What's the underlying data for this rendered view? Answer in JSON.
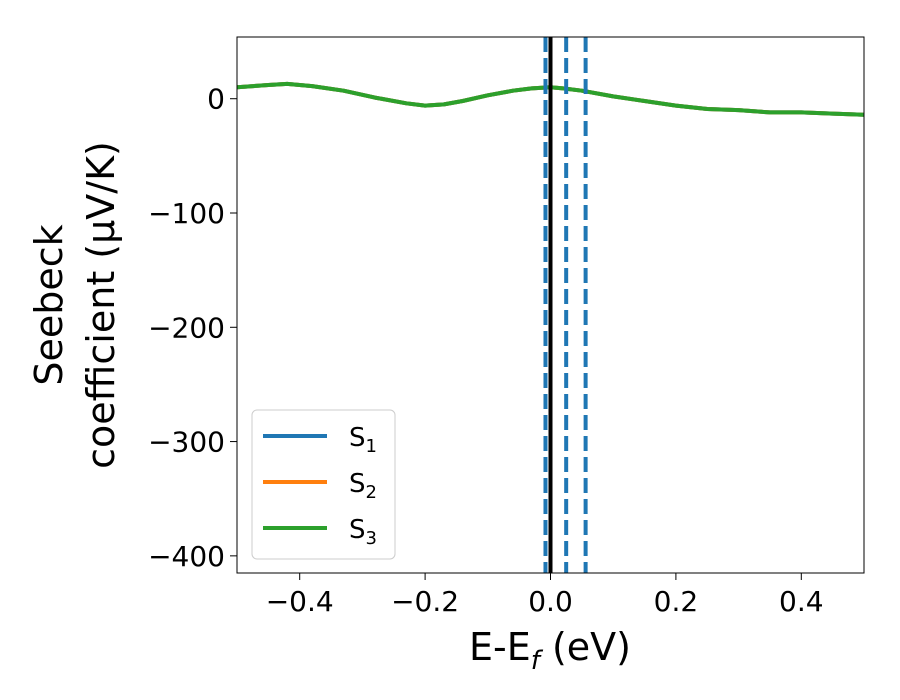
{
  "chart_data": {
    "type": "line",
    "xlabel": {
      "main": "E-E",
      "sub": "f",
      "tail": " (eV)"
    },
    "ylabel": {
      "line1": "Seebeck",
      "line2": "coefficient  (μV/K)"
    },
    "xlim": [
      -0.5,
      0.5
    ],
    "ylim": [
      -415,
      54
    ],
    "xticks": [
      -0.4,
      -0.2,
      0.0,
      0.2,
      0.4
    ],
    "xtick_labels": [
      "−0.4",
      "−0.2",
      "0.0",
      "0.2",
      "0.4"
    ],
    "yticks": [
      0,
      -100,
      -200,
      -300,
      -400
    ],
    "ytick_labels": [
      "0",
      "−100",
      "−200",
      "−300",
      "−400"
    ],
    "grid": false,
    "legend_position": "lower-left",
    "series": [
      {
        "name": {
          "main": "S",
          "sub": "1"
        },
        "color": "#1f77b4",
        "x": [
          -0.5,
          -0.45,
          -0.42,
          -0.38,
          -0.33,
          -0.28,
          -0.23,
          -0.2,
          -0.17,
          -0.14,
          -0.1,
          -0.06,
          -0.03,
          0.0,
          0.02,
          0.05,
          0.1,
          0.15,
          0.2,
          0.25,
          0.3,
          0.35,
          0.4,
          0.45,
          0.5
        ],
        "y": [
          10,
          12,
          13,
          11,
          7,
          1,
          -4,
          -6,
          -5,
          -2,
          3,
          7,
          9,
          10,
          9,
          7,
          2,
          -2,
          -6,
          -9,
          -10,
          -12,
          -12,
          -13,
          -14
        ]
      },
      {
        "name": {
          "main": "S",
          "sub": "2"
        },
        "color": "#ff7f0e",
        "x": [
          -0.5,
          -0.45,
          -0.42,
          -0.38,
          -0.33,
          -0.28,
          -0.23,
          -0.2,
          -0.17,
          -0.14,
          -0.1,
          -0.06,
          -0.03,
          0.0,
          0.02,
          0.05,
          0.1,
          0.15,
          0.2,
          0.25,
          0.3,
          0.35,
          0.4,
          0.45,
          0.5
        ],
        "y": [
          10,
          12,
          13,
          11,
          7,
          1,
          -4,
          -6,
          -5,
          -2,
          3,
          7,
          9,
          10,
          9,
          7,
          2,
          -2,
          -6,
          -9,
          -10,
          -12,
          -12,
          -13,
          -14
        ]
      },
      {
        "name": {
          "main": "S",
          "sub": "3"
        },
        "color": "#2ca02c",
        "x": [
          -0.5,
          -0.45,
          -0.42,
          -0.38,
          -0.33,
          -0.28,
          -0.23,
          -0.2,
          -0.17,
          -0.14,
          -0.1,
          -0.06,
          -0.03,
          0.0,
          0.02,
          0.05,
          0.1,
          0.15,
          0.2,
          0.25,
          0.3,
          0.35,
          0.4,
          0.45,
          0.5
        ],
        "y": [
          10,
          12,
          13,
          11,
          7,
          1,
          -4,
          -6,
          -5,
          -2,
          3,
          7,
          9,
          10,
          9,
          7,
          2,
          -2,
          -6,
          -9,
          -10,
          -12,
          -12,
          -13,
          -14
        ]
      }
    ],
    "vlines": [
      {
        "x": -0.008,
        "style": "dashed",
        "color": "#1f77b4"
      },
      {
        "x": 0.025,
        "style": "dashed",
        "color": "#1f77b4"
      },
      {
        "x": 0.056,
        "style": "dashed",
        "color": "#1f77b4"
      },
      {
        "x": 0.0,
        "style": "solid",
        "color": "#000000"
      }
    ]
  }
}
